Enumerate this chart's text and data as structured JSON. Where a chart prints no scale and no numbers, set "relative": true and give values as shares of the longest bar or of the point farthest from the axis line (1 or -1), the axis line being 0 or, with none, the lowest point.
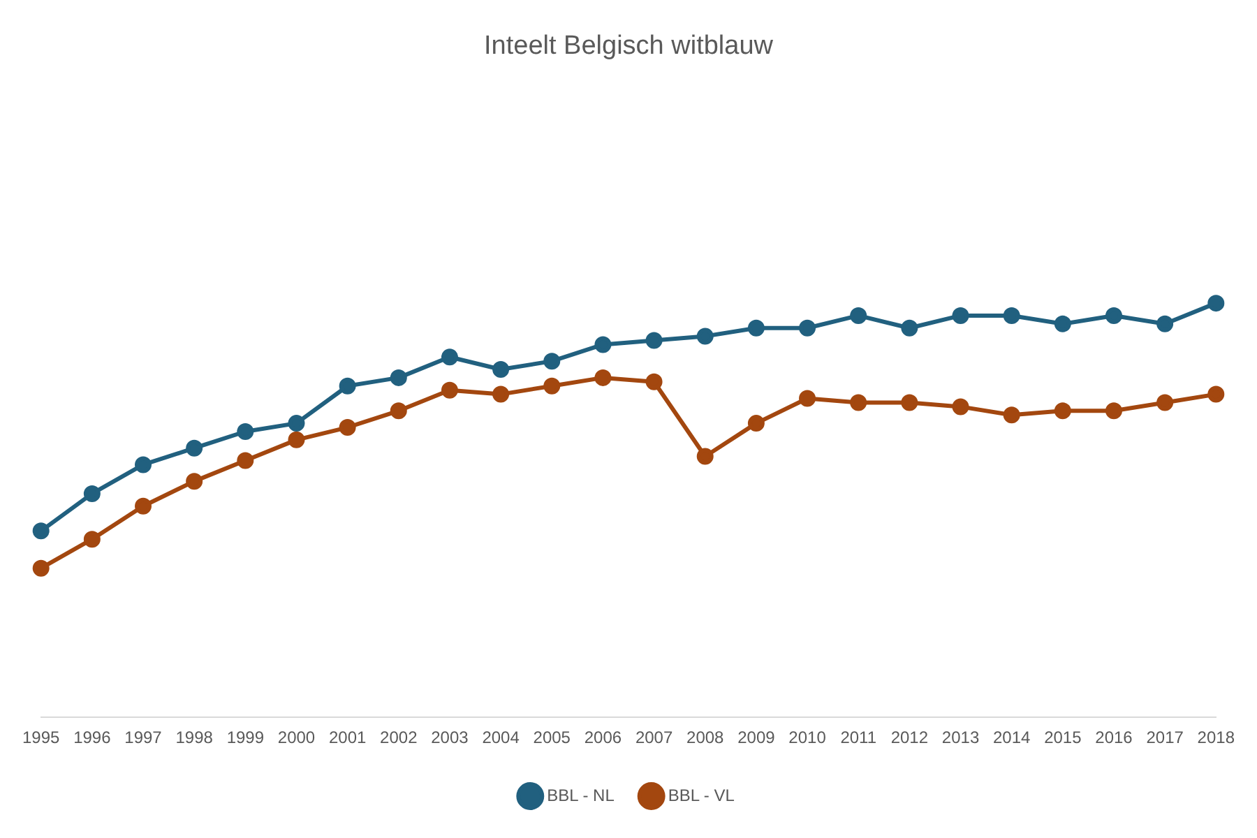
{
  "chart_data": {
    "type": "line",
    "title": "Inteelt Belgisch witblauw",
    "relative": true,
    "legend": "bottom",
    "marker": "circle",
    "line_style": "solid",
    "categories": [
      "1995",
      "1996",
      "1997",
      "1998",
      "1999",
      "2000",
      "2001",
      "2002",
      "2003",
      "2004",
      "2005",
      "2006",
      "2007",
      "2008",
      "2009",
      "2010",
      "2011",
      "2012",
      "2013",
      "2014",
      "2015",
      "2016",
      "2017",
      "2018"
    ],
    "series": [
      {
        "name": "BBL - NL",
        "color": "#21607f",
        "values": [
          0.45,
          0.54,
          0.61,
          0.65,
          0.69,
          0.71,
          0.8,
          0.82,
          0.87,
          0.84,
          0.86,
          0.9,
          0.91,
          0.92,
          0.94,
          0.94,
          0.97,
          0.94,
          0.97,
          0.97,
          0.95,
          0.97,
          0.95,
          1
        ]
      },
      {
        "name": "BBL - VL",
        "color": "#a3470f",
        "values": [
          0.36,
          0.43,
          0.51,
          0.57,
          0.62,
          0.67,
          0.7,
          0.74,
          0.79,
          0.78,
          0.8,
          0.82,
          0.81,
          0.63,
          0.71,
          0.77,
          0.76,
          0.76,
          0.75,
          0.73,
          0.74,
          0.74,
          0.76,
          0.78
        ]
      }
    ]
  }
}
